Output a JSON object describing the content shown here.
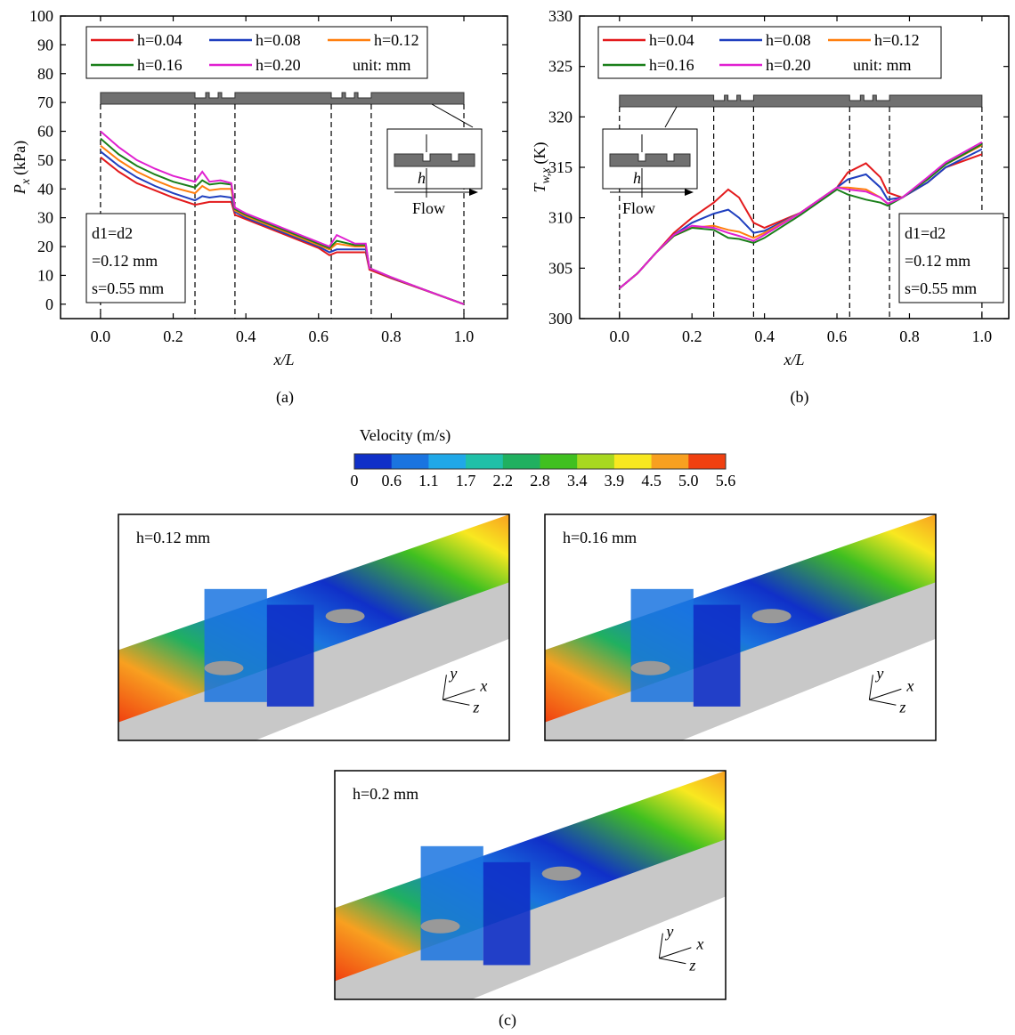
{
  "chart_data": [
    {
      "type": "line",
      "panel_label": "(a)",
      "ylabel": {
        "symbol": "P",
        "subscript": "x",
        "unit": "(kPa)"
      },
      "xlabel": "x/L",
      "xlim": [
        -0.11,
        1.12
      ],
      "xticks": [
        {
          "value": 0,
          "label": "0.0"
        },
        0.2,
        0.4,
        0.6,
        0.8,
        {
          "value": 1,
          "label": "1.0"
        }
      ],
      "ylim": [
        -5,
        100
      ],
      "yticks": [
        0,
        10,
        20,
        30,
        40,
        50,
        60,
        70,
        80,
        90,
        100
      ],
      "legend_note": "unit: mm",
      "annotation": [
        "d1=d2",
        "=0.12 mm",
        "s=0.55  mm"
      ],
      "flow_label": "Flow",
      "inset_label": "h",
      "section_bounds": [
        0,
        0.26,
        0.37,
        0.635,
        0.745,
        1.0
      ],
      "x": [
        0,
        0.05,
        0.1,
        0.15,
        0.2,
        0.26,
        0.28,
        0.3,
        0.33,
        0.36,
        0.37,
        0.4,
        0.5,
        0.6,
        0.63,
        0.65,
        0.7,
        0.73,
        0.74,
        0.8,
        0.9,
        1.0
      ],
      "series": [
        {
          "name": "h=0.04",
          "color": "#e31a1c",
          "values": [
            51,
            46,
            42,
            39.5,
            37,
            34.5,
            35,
            35.5,
            35.5,
            35.5,
            31,
            29.5,
            24.5,
            19.5,
            17,
            18,
            18,
            18,
            12,
            9,
            4.5,
            0
          ]
        },
        {
          "name": "h=0.08",
          "color": "#1f3fbf",
          "values": [
            53,
            48,
            44,
            41,
            38.5,
            36,
            37.5,
            37,
            37.5,
            37,
            32,
            30,
            25,
            20,
            18,
            19,
            19,
            19,
            12.5,
            9.2,
            4.6,
            0
          ]
        },
        {
          "name": "h=0.12",
          "color": "#ff7f0e",
          "values": [
            55,
            50,
            46,
            43,
            40.5,
            38.5,
            41,
            39.5,
            40,
            40,
            32.5,
            30.5,
            25.5,
            20.5,
            19,
            21,
            20,
            20,
            12.5,
            9.3,
            4.6,
            0
          ]
        },
        {
          "name": "h=0.16",
          "color": "#1a7f1a",
          "values": [
            57.5,
            52,
            48,
            45,
            42.5,
            40.5,
            43,
            41.5,
            42,
            41.5,
            33,
            31,
            26,
            21,
            19.5,
            22,
            20.5,
            20.5,
            12.5,
            9.3,
            4.6,
            0
          ]
        },
        {
          "name": "h=0.20",
          "color": "#e020d0",
          "values": [
            60,
            54.5,
            50,
            47,
            44.5,
            42.5,
            46,
            42.5,
            43,
            42,
            33.5,
            31.5,
            26.5,
            21.5,
            20,
            24,
            21,
            21,
            12.5,
            9.4,
            4.6,
            0
          ]
        }
      ]
    },
    {
      "type": "line",
      "panel_label": "(b)",
      "ylabel": {
        "symbol": "T",
        "subscript": "w,x",
        "unit": "(K)"
      },
      "xlabel": "x/L",
      "xlim": [
        -0.11,
        1.074
      ],
      "xticks": [
        {
          "value": 0,
          "label": "0.0"
        },
        0.2,
        0.4,
        0.6,
        0.8,
        {
          "value": 1,
          "label": "1.0"
        }
      ],
      "ylim": [
        300,
        330
      ],
      "yticks": [
        300,
        305,
        310,
        315,
        320,
        325,
        330
      ],
      "legend_note": "unit: mm",
      "annotation": [
        "d1=d2",
        "=0.12 mm",
        "s=0.55 mm"
      ],
      "flow_label": "Flow",
      "inset_label": "h",
      "section_bounds": [
        0,
        0.26,
        0.37,
        0.635,
        0.745,
        1.0
      ],
      "x": [
        0,
        0.05,
        0.1,
        0.15,
        0.2,
        0.26,
        0.3,
        0.33,
        0.37,
        0.4,
        0.5,
        0.6,
        0.63,
        0.68,
        0.72,
        0.74,
        0.78,
        0.85,
        0.9,
        1.0
      ],
      "series": [
        {
          "name": "h=0.04",
          "color": "#e31a1c",
          "values": [
            303,
            304.5,
            306.5,
            308.5,
            310,
            311.5,
            312.8,
            312,
            309.5,
            309,
            310.5,
            313,
            314.5,
            315.4,
            314,
            312.5,
            312,
            313.5,
            315,
            316.3
          ]
        },
        {
          "name": "h=0.08",
          "color": "#1f3fbf",
          "values": [
            303,
            304.5,
            306.5,
            308.3,
            309.5,
            310.4,
            310.8,
            310,
            308.5,
            308.7,
            310.5,
            313,
            313.8,
            314.3,
            313,
            311.8,
            312,
            313.5,
            315,
            316.8
          ]
        },
        {
          "name": "h=0.12",
          "color": "#ff7f0e",
          "values": [
            303,
            304.5,
            306.5,
            308.2,
            309,
            309.2,
            308.8,
            308.6,
            308,
            308.5,
            310.5,
            313,
            313,
            312.8,
            312,
            311.4,
            312,
            313.8,
            315.3,
            317.2
          ]
        },
        {
          "name": "h=0.16",
          "color": "#1a7f1a",
          "values": [
            303,
            304.5,
            306.5,
            308.2,
            309,
            308.8,
            308,
            307.9,
            307.5,
            308,
            310.3,
            312.8,
            312.3,
            311.8,
            311.5,
            311.2,
            312,
            313.8,
            315.3,
            317.3
          ]
        },
        {
          "name": "h=0.20",
          "color": "#e020d0",
          "values": [
            303,
            304.5,
            306.5,
            308.3,
            309.2,
            309,
            308.5,
            308.2,
            307.7,
            308.3,
            310.5,
            313,
            312.8,
            312.6,
            312,
            311.4,
            312,
            314,
            315.5,
            317.5
          ]
        }
      ]
    }
  ],
  "colorbar": {
    "title": "Velocity (m/s)",
    "ticks": [
      "0",
      "0.6",
      "1.1",
      "1.7",
      "2.2",
      "2.8",
      "3.4",
      "3.9",
      "4.5",
      "5.0",
      "5.6"
    ],
    "colors": [
      "#1030c8",
      "#1a74e0",
      "#20a8e8",
      "#20c0a8",
      "#20b060",
      "#40c020",
      "#a8d820",
      "#f8e820",
      "#f8a020",
      "#f04010"
    ]
  },
  "panels": [
    {
      "label": "h=0.12 mm",
      "axes": [
        "y",
        "x",
        "z"
      ]
    },
    {
      "label": "h=0.16 mm",
      "axes": [
        "y",
        "x",
        "z"
      ]
    },
    {
      "label": "h=0.2 mm",
      "axes": [
        "y",
        "x",
        "z"
      ]
    }
  ],
  "panel_label": "(c)"
}
